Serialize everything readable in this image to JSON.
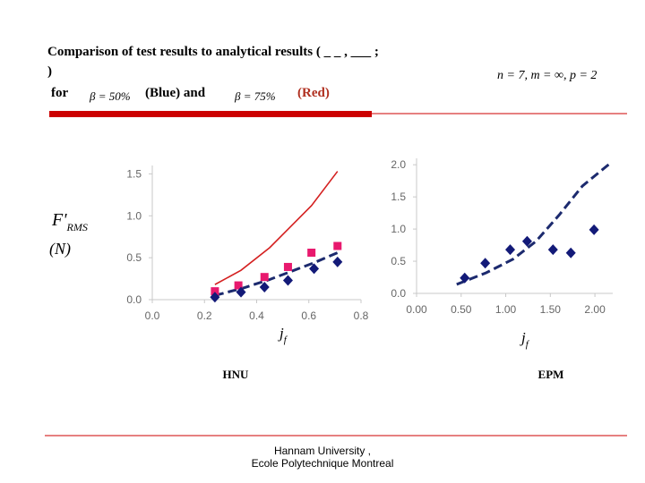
{
  "slide": {
    "title_line1": "Comparison of test results to analytical results ( _ _ , ___ ;",
    "title_line2": ")",
    "for": "for",
    "beta_blue": "β = 50%",
    "blue_text": "(Blue)  and",
    "beta_red": "β = 75%",
    "red_text": "(Red)",
    "params": "n = 7, m = ∞, p = 2",
    "footer_line1": "Hannam University ,",
    "footer_line2": "Ecole Polytechnique Montreal"
  },
  "chart_data": [
    {
      "type": "line",
      "title": "HNU",
      "y_label": {
        "main": "F'",
        "sub": "RMS",
        "unit": "(N)"
      },
      "x_label": {
        "main": "j",
        "sub": "f"
      },
      "xlim": [
        0,
        0.8
      ],
      "xticks": [
        {
          "value": 0,
          "label": "0.0"
        },
        {
          "value": 0.2,
          "label": "0.2"
        },
        {
          "value": 0.4,
          "label": "0.4"
        },
        {
          "value": 0.6,
          "label": "0.6"
        },
        {
          "value": 0.8,
          "label": "0.8"
        }
      ],
      "ylim": [
        0,
        1.6
      ],
      "yticks": [
        {
          "value": 0,
          "label": "0.0"
        },
        {
          "value": 0.5,
          "label": "0.5"
        },
        {
          "value": 1,
          "label": "1.0"
        },
        {
          "value": 1.5,
          "label": "1.5"
        }
      ],
      "series": [
        {
          "kind": "line",
          "dashed": false,
          "color": "#d42020",
          "x": [
            0.24,
            0.34,
            0.45,
            0.61,
            0.71
          ],
          "values": [
            0.18,
            0.35,
            0.62,
            1.12,
            1.53
          ]
        },
        {
          "kind": "line",
          "dashed": true,
          "color": "#1c2a6e",
          "x": [
            0.24,
            0.35,
            0.45,
            0.62,
            0.71
          ],
          "values": [
            0.05,
            0.14,
            0.24,
            0.44,
            0.56
          ]
        },
        {
          "kind": "marker",
          "marker": "square",
          "color": "#e8196e",
          "x": [
            0.24,
            0.33,
            0.43,
            0.52,
            0.61,
            0.71
          ],
          "values": [
            0.1,
            0.17,
            0.27,
            0.39,
            0.56,
            0.64
          ]
        },
        {
          "kind": "marker",
          "marker": "diamond",
          "color": "#131a78",
          "x": [
            0.24,
            0.34,
            0.43,
            0.52,
            0.62,
            0.71
          ],
          "values": [
            0.03,
            0.09,
            0.15,
            0.23,
            0.37,
            0.45
          ]
        }
      ]
    },
    {
      "type": "line",
      "title": "EPM",
      "x_label": {
        "main": "j",
        "sub": "f"
      },
      "xlim": [
        0,
        2.2
      ],
      "xticks": [
        {
          "value": 0,
          "label": "0.00"
        },
        {
          "value": 0.5,
          "label": "0.50"
        },
        {
          "value": 1,
          "label": "1.00"
        },
        {
          "value": 1.5,
          "label": "1.50"
        },
        {
          "value": 2,
          "label": "2.00"
        }
      ],
      "ylim": [
        0,
        2.1
      ],
      "yticks": [
        {
          "value": 0,
          "label": "0.0"
        },
        {
          "value": 0.5,
          "label": "0.5"
        },
        {
          "value": 1,
          "label": "1.0"
        },
        {
          "value": 1.5,
          "label": "1.5"
        },
        {
          "value": 2,
          "label": "2.0"
        }
      ],
      "series": [
        {
          "kind": "line",
          "dashed": true,
          "color": "#1c2a6e",
          "x": [
            0.45,
            0.78,
            1.08,
            1.34,
            1.6,
            1.86,
            2.16
          ],
          "values": [
            0.14,
            0.32,
            0.53,
            0.81,
            1.22,
            1.67,
            2.01
          ]
        },
        {
          "kind": "marker",
          "marker": "diamond",
          "color": "#131a78",
          "x": [
            0.54,
            0.77,
            1.05,
            1.24,
            1.53,
            1.73,
            1.99
          ],
          "values": [
            0.24,
            0.47,
            0.68,
            0.81,
            0.68,
            0.63,
            0.99
          ]
        }
      ]
    }
  ]
}
